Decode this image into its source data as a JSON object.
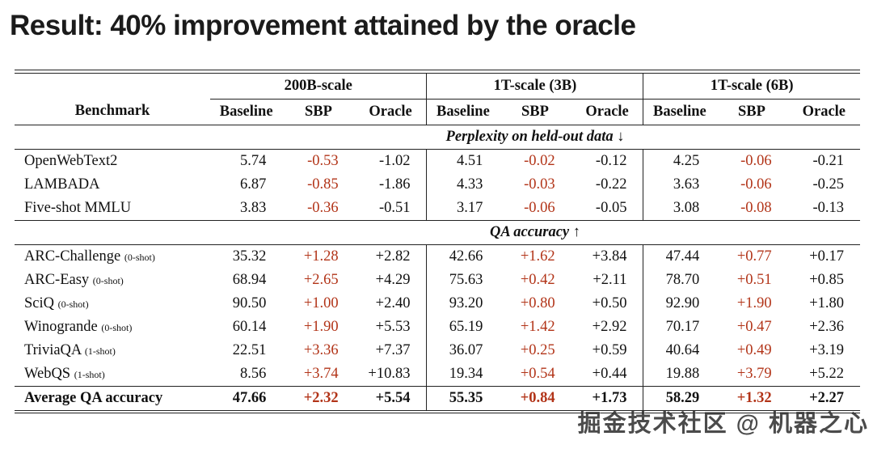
{
  "slide": {
    "title": "Result: 40% improvement attained by the oracle"
  },
  "watermark": {
    "text": "掘金技术社区 @ 机器之心"
  },
  "colors": {
    "sbp_red": "#b23418",
    "rule": "#222222",
    "text": "#111111",
    "background": "#ffffff"
  },
  "chart_data": {
    "type": "table",
    "title": "Result: 40% improvement attained by the oracle",
    "header": {
      "benchmark": "Benchmark",
      "groups": [
        "200B-scale",
        "1T-scale (3B)",
        "1T-scale (6B)"
      ],
      "subcolumns": [
        "Baseline",
        "SBP",
        "Oracle"
      ]
    },
    "sections": [
      {
        "label": "Perplexity on held-out data ↓",
        "rows": [
          {
            "benchmark": "OpenWebText2",
            "shot": "",
            "values": [
              "5.74",
              "-0.53",
              "-1.02",
              "4.51",
              "-0.02",
              "-0.12",
              "4.25",
              "-0.06",
              "-0.21"
            ]
          },
          {
            "benchmark": "LAMBADA",
            "shot": "",
            "values": [
              "6.87",
              "-0.85",
              "-1.86",
              "4.33",
              "-0.03",
              "-0.22",
              "3.63",
              "-0.06",
              "-0.25"
            ]
          },
          {
            "benchmark": "Five-shot MMLU",
            "shot": "",
            "values": [
              "3.83",
              "-0.36",
              "-0.51",
              "3.17",
              "-0.06",
              "-0.05",
              "3.08",
              "-0.08",
              "-0.13"
            ]
          }
        ]
      },
      {
        "label": "QA accuracy ↑",
        "rows": [
          {
            "benchmark": "ARC-Challenge",
            "shot": "(0-shot)",
            "values": [
              "35.32",
              "+1.28",
              "+2.82",
              "42.66",
              "+1.62",
              "+3.84",
              "47.44",
              "+0.77",
              "+0.17"
            ]
          },
          {
            "benchmark": "ARC-Easy",
            "shot": "(0-shot)",
            "values": [
              "68.94",
              "+2.65",
              "+4.29",
              "75.63",
              "+0.42",
              "+2.11",
              "78.70",
              "+0.51",
              "+0.85"
            ]
          },
          {
            "benchmark": "SciQ",
            "shot": "(0-shot)",
            "values": [
              "90.50",
              "+1.00",
              "+2.40",
              "93.20",
              "+0.80",
              "+0.50",
              "92.90",
              "+1.90",
              "+1.80"
            ]
          },
          {
            "benchmark": "Winogrande",
            "shot": "(0-shot)",
            "values": [
              "60.14",
              "+1.90",
              "+5.53",
              "65.19",
              "+1.42",
              "+2.92",
              "70.17",
              "+0.47",
              "+2.36"
            ]
          },
          {
            "benchmark": "TriviaQA",
            "shot": "(1-shot)",
            "values": [
              "22.51",
              "+3.36",
              "+7.37",
              "36.07",
              "+0.25",
              "+0.59",
              "40.64",
              "+0.49",
              "+3.19"
            ]
          },
          {
            "benchmark": "WebQS",
            "shot": "(1-shot)",
            "values": [
              "8.56",
              "+3.74",
              "+10.83",
              "19.34",
              "+0.54",
              "+0.44",
              "19.88",
              "+3.79",
              "+5.22"
            ]
          }
        ]
      }
    ],
    "summary_row": {
      "benchmark": "Average QA accuracy",
      "values": [
        "47.66",
        "+2.32",
        "+5.54",
        "55.35",
        "+0.84",
        "+1.73",
        "58.29",
        "+1.32",
        "+2.27"
      ]
    }
  }
}
